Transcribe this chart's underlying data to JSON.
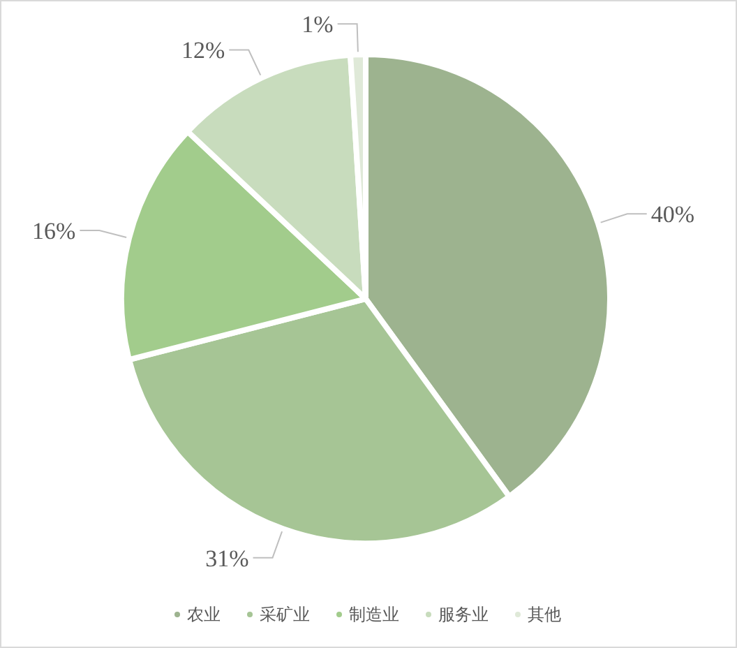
{
  "chart_data": {
    "type": "pie",
    "categories": [
      "农业",
      "采矿业",
      "制造业",
      "服务业",
      "其他"
    ],
    "values": [
      40,
      31,
      16,
      12,
      1
    ],
    "colors": [
      "#9db38f",
      "#a6c595",
      "#a2cc8c",
      "#c8dcbd",
      "#dfe9d8"
    ],
    "value_labels": [
      "40%",
      "31%",
      "16%",
      "12%",
      "1%"
    ],
    "legend": "bottom"
  }
}
